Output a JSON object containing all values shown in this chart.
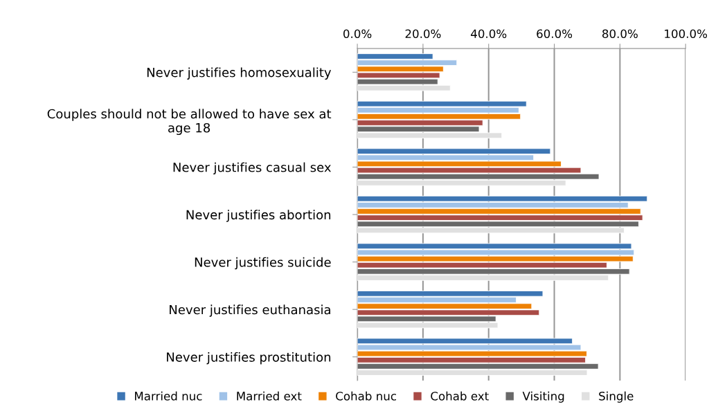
{
  "chart_data": {
    "type": "bar",
    "orientation": "horizontal",
    "categories": [
      "Never justifies homosexuality",
      "Couples should not be allowed to have sex at\nage 18",
      "Never justifies casual sex",
      "Never justifies abortion",
      "Never justifies suicide",
      "Never justifies euthanasia",
      "Never justifies prostitution"
    ],
    "series": [
      {
        "name": "Married nuc",
        "color": "#3d76b4",
        "values": [
          23.0,
          51.5,
          58.8,
          88.3,
          83.5,
          56.5,
          65.5
        ]
      },
      {
        "name": "Married ext",
        "color": "#a0c2e8",
        "values": [
          30.3,
          49.2,
          53.7,
          82.5,
          84.3,
          48.4,
          68.1
        ]
      },
      {
        "name": "Cohab nuc",
        "color": "#ed8104",
        "values": [
          26.2,
          49.7,
          62.1,
          86.3,
          84.0,
          53.1,
          69.9
        ]
      },
      {
        "name": "Cohab ext",
        "color": "#a94b46",
        "values": [
          25.1,
          38.2,
          68.1,
          86.9,
          76.0,
          55.4,
          69.5
        ]
      },
      {
        "name": "Visiting",
        "color": "#696969",
        "values": [
          24.5,
          37.1,
          73.6,
          85.7,
          82.9,
          42.2,
          73.4
        ]
      },
      {
        "name": "Single",
        "color": "#e0e0e0",
        "values": [
          28.3,
          44.0,
          63.5,
          81.3,
          76.5,
          42.8,
          70.0
        ]
      }
    ],
    "xlim": [
      0,
      100
    ],
    "xticks": [
      {
        "value": 0,
        "label": "0.0%"
      },
      {
        "value": 20,
        "label": "20.0%"
      },
      {
        "value": 40,
        "label": "40.0%"
      },
      {
        "value": 60,
        "label": "60.0%"
      },
      {
        "value": 80,
        "label": "80.0%"
      },
      {
        "value": 100,
        "label": "100.0%"
      }
    ],
    "grid": "x",
    "legend": "bottom"
  }
}
